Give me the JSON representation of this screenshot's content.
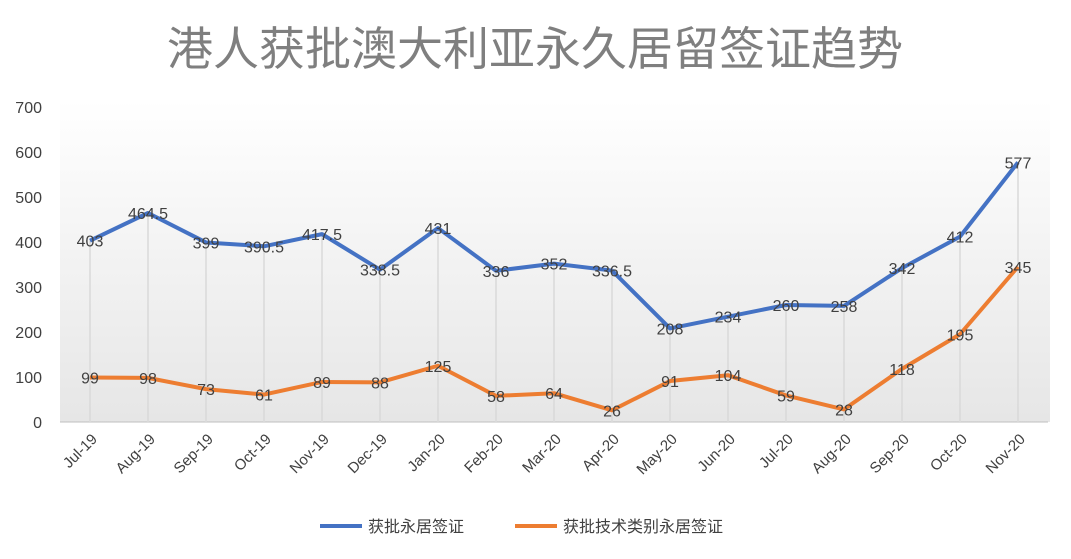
{
  "chart_data": {
    "type": "line",
    "title": "港人获批澳大利亚永久居留签证趋势",
    "categories": [
      "Jul-19",
      "Aug-19",
      "Sep-19",
      "Oct-19",
      "Nov-19",
      "Dec-19",
      "Jan-20",
      "Feb-20",
      "Mar-20",
      "Apr-20",
      "May-20",
      "Jun-20",
      "Jul-20",
      "Aug-20",
      "Sep-20",
      "Oct-20",
      "Nov-20"
    ],
    "ylim": [
      0,
      700
    ],
    "yticks": [
      0,
      100,
      200,
      300,
      400,
      500,
      600,
      700
    ],
    "legend": "bottom",
    "series": [
      {
        "name": "获批永居签证",
        "color": "#4472C4",
        "values": [
          403,
          464.5,
          399,
          390.5,
          417.5,
          338.5,
          431,
          336,
          352,
          336.5,
          208,
          234,
          260,
          258,
          342,
          412,
          577
        ]
      },
      {
        "name": "获批技术类别永居签证",
        "color": "#ED7D31",
        "values": [
          99,
          98,
          73,
          61,
          89,
          88,
          125,
          58,
          64,
          26,
          91,
          104,
          59,
          28,
          118,
          195,
          345
        ]
      }
    ]
  }
}
